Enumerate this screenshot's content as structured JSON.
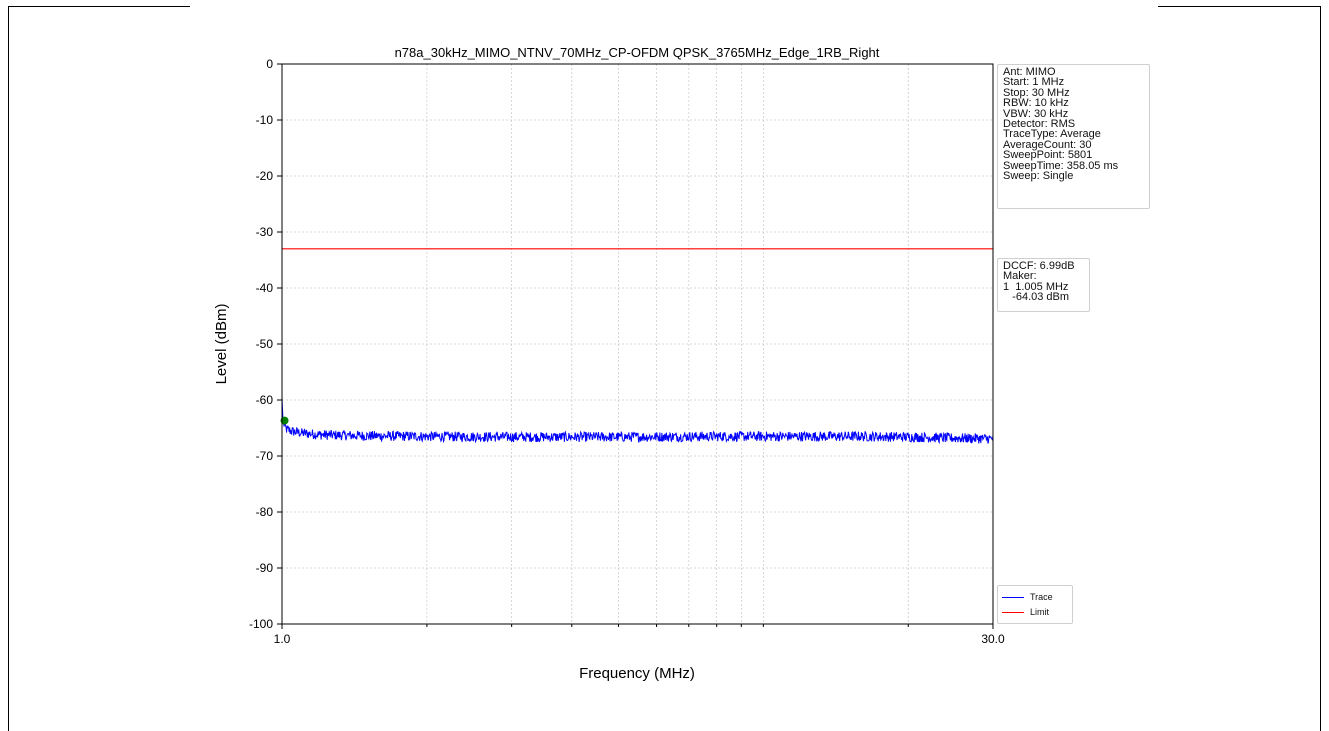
{
  "chart_data": {
    "type": "line",
    "title": "n78a_30kHz_MIMO_NTNV_70MHz_CP-OFDM QPSK_3765MHz_Edge_1RB_Right",
    "xlabel": "Frequency (MHz)",
    "ylabel": "Level (dBm)",
    "xscale": "log",
    "xlim": [
      1.0,
      30.0
    ],
    "ylim": [
      -100,
      0
    ],
    "x_tick_labels": [
      "1.0",
      "30.0"
    ],
    "y_ticks": [
      0,
      -10,
      -20,
      -30,
      -40,
      -50,
      -60,
      -70,
      -80,
      -90,
      -100
    ],
    "grid": true,
    "series": [
      {
        "name": "Trace",
        "color": "#0000ff",
        "x": [
          1.0,
          1.005,
          1.02,
          1.05,
          1.1,
          1.2,
          1.5,
          2,
          3,
          5,
          8,
          12,
          16,
          20,
          25,
          30
        ],
        "y": [
          -59.5,
          -64.0,
          -65.2,
          -65.6,
          -65.9,
          -66.2,
          -66.4,
          -66.5,
          -66.6,
          -66.6,
          -66.5,
          -66.5,
          -66.5,
          -66.6,
          -66.8,
          -66.9
        ]
      },
      {
        "name": "Limit",
        "color": "#ff0000",
        "x": [
          1.0,
          30.0
        ],
        "y": [
          -33.0,
          -33.0
        ]
      }
    ],
    "marker": {
      "x": 1.005,
      "y": -64.03,
      "color": "#008000"
    },
    "legend_position": "lower-right outside"
  },
  "settings_box": {
    "lines": [
      "Ant: MIMO",
      "Start: 1 MHz",
      "Stop: 30 MHz",
      "RBW: 10 kHz",
      "VBW: 30 kHz",
      "Detector: RMS",
      "TraceType: Average",
      "AverageCount: 30",
      "SweepPoint: 5801",
      "SweepTime: 358.05 ms",
      "Sweep: Single"
    ]
  },
  "marker_box": {
    "lines": [
      "DCCF: 6.99dB",
      "Maker:",
      "1  1.005 MHz",
      "   -64.03 dBm"
    ]
  },
  "legend": {
    "items": [
      {
        "label": "Trace",
        "color": "#0000ff"
      },
      {
        "label": "Limit",
        "color": "#ff0000"
      }
    ]
  }
}
